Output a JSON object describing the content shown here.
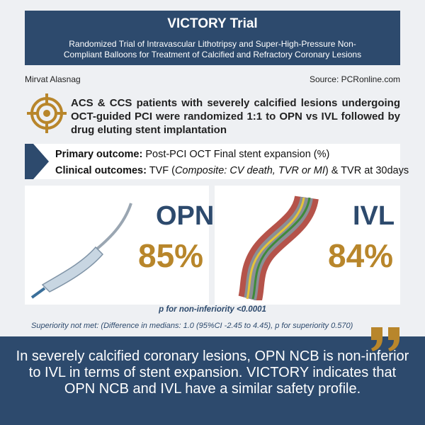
{
  "header": {
    "title": "VICTORY Trial",
    "subtitle": "Randomized Trial of Intravascular Lithotripsy and Super-High-Pressure Non-Compliant Balloons for Treatment of Calcified and Refractory Coronary Lesions"
  },
  "author": "Mirvat Alasnag",
  "source": "Source: PCRonline.com",
  "design": "ACS & CCS patients with severely calcified lesions undergoing OCT-guided PCI were randomized 1:1 to OPN vs IVL followed by drug eluting stent implantation",
  "outcomes": {
    "primary": {
      "label": "Primary outcome:",
      "text": "Post-PCI OCT Final stent expansion (%)"
    },
    "clinical": {
      "label": "Clinical outcomes:",
      "parts": [
        "TVF (",
        "Composite: CV death, TVR or MI",
        ") & TVR at 30days"
      ]
    }
  },
  "arms": [
    {
      "name": "OPN",
      "result": "85%"
    },
    {
      "name": "IVL",
      "result": "84%"
    }
  ],
  "p_noninferiority": "p for non-inferiority <0.0001",
  "superiority": "Superiority not met: (Difference in medians: 1.0 (95%CI -2.45 to 4.45), p for superiority 0.570)",
  "conclusion": "In severely calcified coronary lesions, OPN NCB is non-inferior to IVL in terms of stent expansion. VICTORY indicates that OPN NCB and IVL have a similar safety profile."
}
